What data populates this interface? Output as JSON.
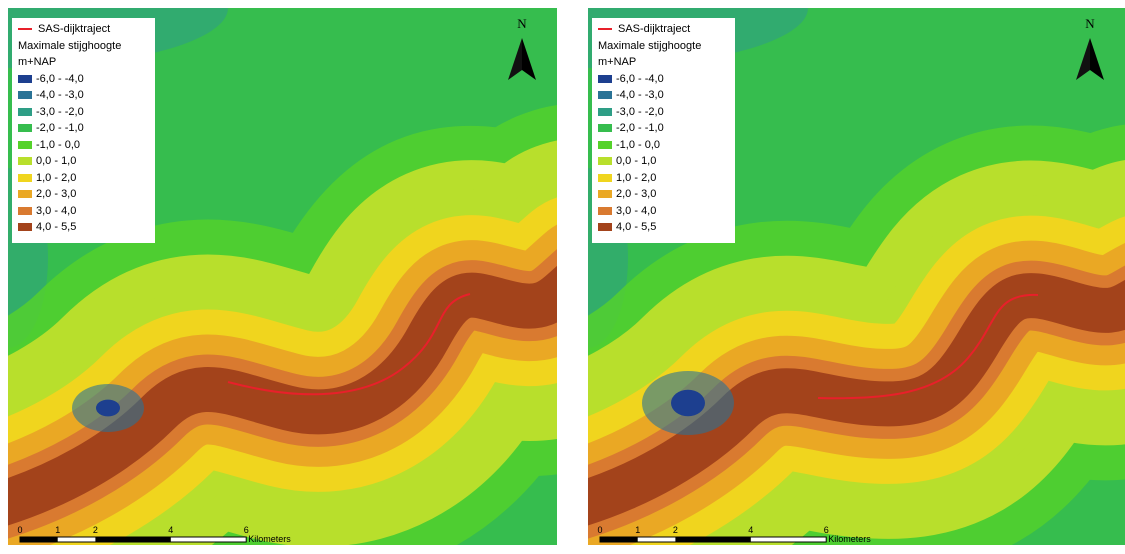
{
  "maps": [
    {
      "legend": {
        "line_label": "SAS-dijktraject",
        "line_color": "#e8202a",
        "title": "Maximale stijghoogte",
        "unit": "m+NAP",
        "classes": [
          {
            "label": "-6,0 - -4,0",
            "color": "#1d3f8f"
          },
          {
            "label": "-4,0 - -3,0",
            "color": "#2a7396"
          },
          {
            "label": "-3,0 - -2,0",
            "color": "#2e9e86"
          },
          {
            "label": "-2,0 - -1,0",
            "color": "#36bd4e"
          },
          {
            "label": "-1,0 - 0,0",
            "color": "#55d22a"
          },
          {
            "label": "0,0 - 1,0",
            "color": "#b8df2c"
          },
          {
            "label": "1,0 - 2,0",
            "color": "#f0d51e"
          },
          {
            "label": "2,0 - 3,0",
            "color": "#eaa824"
          },
          {
            "label": "3,0 - 4,0",
            "color": "#d97a30"
          },
          {
            "label": "4,0 - 5,5",
            "color": "#a3431b"
          }
        ]
      },
      "north": "N",
      "scale": {
        "ticks": [
          0,
          1,
          2,
          4,
          6
        ],
        "unit": "Kilometers"
      }
    },
    {
      "legend": {
        "line_label": "SAS-dijktraject",
        "line_color": "#e8202a",
        "title": "Maximale stijghoogte",
        "unit": "m+NAP",
        "classes": [
          {
            "label": "-6,0 - -4,0",
            "color": "#1d3f8f"
          },
          {
            "label": "-4,0 - -3,0",
            "color": "#2a7396"
          },
          {
            "label": "-3,0 - -2,0",
            "color": "#2e9e86"
          },
          {
            "label": "-2,0 - -1,0",
            "color": "#36bd4e"
          },
          {
            "label": "-1,0 - 0,0",
            "color": "#55d22a"
          },
          {
            "label": "0,0 - 1,0",
            "color": "#b8df2c"
          },
          {
            "label": "1,0 - 2,0",
            "color": "#f0d51e"
          },
          {
            "label": "2,0 - 3,0",
            "color": "#eaa824"
          },
          {
            "label": "3,0 - 4,0",
            "color": "#d97a30"
          },
          {
            "label": "4,0 - 5,5",
            "color": "#a3431b"
          }
        ]
      },
      "north": "N",
      "scale": {
        "ticks": [
          0,
          1,
          2,
          4,
          6
        ],
        "unit": "Kilometers"
      }
    }
  ]
}
